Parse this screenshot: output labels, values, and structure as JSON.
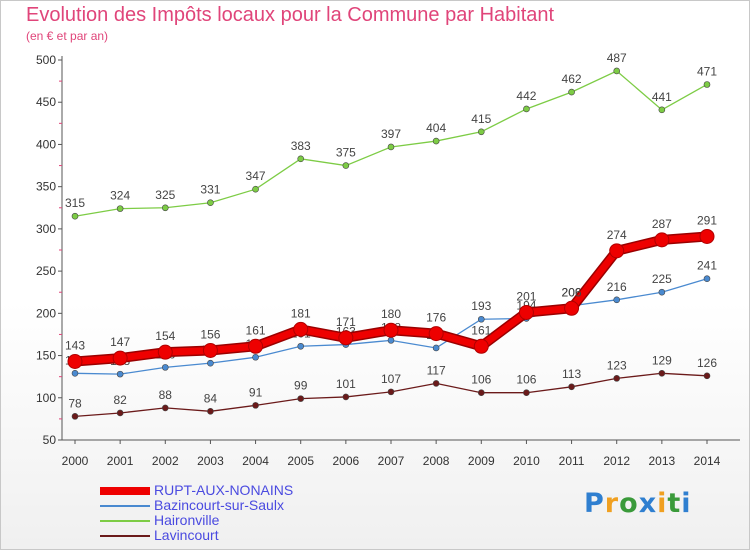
{
  "chart_data": {
    "type": "line",
    "title": "Evolution des Impôts locaux pour la Commune par Habitant",
    "subtitle": "(en € et par an)",
    "xlabel": "",
    "ylabel": "",
    "ylim": [
      50,
      500
    ],
    "yticks": [
      50,
      100,
      150,
      200,
      250,
      300,
      350,
      400,
      450,
      500
    ],
    "categories": [
      "2000",
      "2001",
      "2002",
      "2003",
      "2004",
      "2005",
      "2006",
      "2007",
      "2008",
      "2009",
      "2010",
      "2011",
      "2012",
      "2013",
      "2014"
    ],
    "series": [
      {
        "name": "Lavincourt",
        "color": "#6b1a1a",
        "values": [
          78,
          82,
          88,
          84,
          91,
          99,
          101,
          107,
          117,
          106,
          106,
          113,
          123,
          129,
          126
        ]
      },
      {
        "name": "Bazincourt-sur-Saulx",
        "color": "#4a8ad0",
        "values": [
          129,
          128,
          136,
          141,
          148,
          161,
          163,
          168,
          159,
          193,
          194,
          209,
          216,
          225,
          241
        ]
      },
      {
        "name": "Haironville",
        "color": "#7dcc45",
        "values": [
          315,
          324,
          325,
          331,
          347,
          383,
          375,
          397,
          404,
          415,
          442,
          462,
          487,
          441,
          471
        ]
      },
      {
        "name": "RUPT-AUX-NONAINS",
        "color": "#ee0000",
        "values": [
          143,
          147,
          154,
          156,
          161,
          181,
          171,
          180,
          176,
          161,
          201,
          206,
          274,
          287,
          291
        ]
      }
    ],
    "legend": [
      "RUPT-AUX-NONAINS",
      "Bazincourt-sur-Saulx",
      "Haironville",
      "Lavincourt"
    ],
    "legend_position": "bottom-left",
    "grid": false
  },
  "logo": {
    "letters": [
      {
        "char": "P",
        "color": "#2f7fd0"
      },
      {
        "char": "r",
        "color": "#f0a020"
      },
      {
        "char": "o",
        "color": "#3a9a3a"
      },
      {
        "char": "x",
        "color": "#2f7fd0"
      },
      {
        "char": "i",
        "color": "#f0a020"
      },
      {
        "char": "t",
        "color": "#3a9a3a"
      },
      {
        "char": "i",
        "color": "#2f7fd0"
      }
    ]
  }
}
